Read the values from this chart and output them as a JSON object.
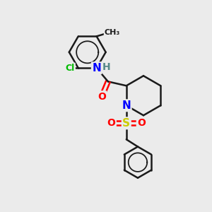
{
  "background_color": "#ebebeb",
  "bond_color": "#1a1a1a",
  "atom_colors": {
    "N": "#0000ff",
    "O": "#ff0000",
    "S": "#cccc00",
    "Cl": "#00bb00",
    "H": "#558888",
    "C": "#1a1a1a"
  },
  "lw": 1.8,
  "figsize": [
    3.0,
    3.0
  ],
  "dpi": 100
}
